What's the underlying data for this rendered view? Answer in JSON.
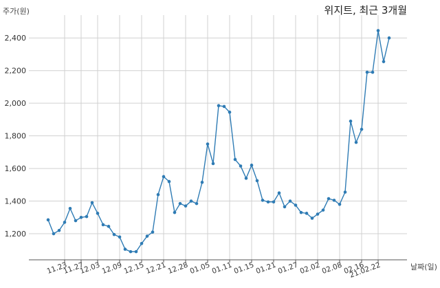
{
  "chart_data": {
    "type": "line",
    "title": "위지트, 최근 3개월",
    "ylabel": "주가(원)",
    "xlabel": "날짜(일)",
    "ylim": [
      1040,
      2540
    ],
    "yticks": [
      1200,
      1400,
      1600,
      1800,
      2000,
      2200,
      2400
    ],
    "ytick_labels": [
      "1,200",
      "1,400",
      "1,600",
      "1,800",
      "2,000",
      "2,200",
      "2,400"
    ],
    "xtick_labels": [
      "11.23",
      "11.27",
      "12.03",
      "12.09",
      "12.15",
      "12.21",
      "12.28",
      "01.05",
      "01.11",
      "01.15",
      "01.21",
      "01.27",
      "02.02",
      "02.08",
      "02.16",
      "21.02.22"
    ],
    "xtick_index": [
      3,
      6,
      9,
      13,
      17,
      21,
      25,
      29,
      33,
      37,
      41,
      45,
      49,
      53,
      57,
      60
    ],
    "grid": true,
    "color": "#2e7bb4",
    "series": [
      {
        "values": [
          1285,
          1200,
          1220,
          1270,
          1355,
          1280,
          1300,
          1305,
          1390,
          1325,
          1255,
          1245,
          1195,
          1180,
          1105,
          1090,
          1090,
          1140,
          1185,
          1210,
          1440,
          1550,
          1520,
          1330,
          1385,
          1370,
          1400,
          1385,
          1515,
          1750,
          1630,
          1985,
          1980,
          1945,
          1655,
          1615,
          1540,
          1620,
          1525,
          1405,
          1395,
          1395,
          1450,
          1365,
          1400,
          1375,
          1330,
          1325,
          1295,
          1320,
          1345,
          1415,
          1405,
          1380,
          1455,
          1890,
          1760,
          1840,
          2190,
          2190,
          2445,
          2255,
          2400
        ]
      }
    ]
  }
}
